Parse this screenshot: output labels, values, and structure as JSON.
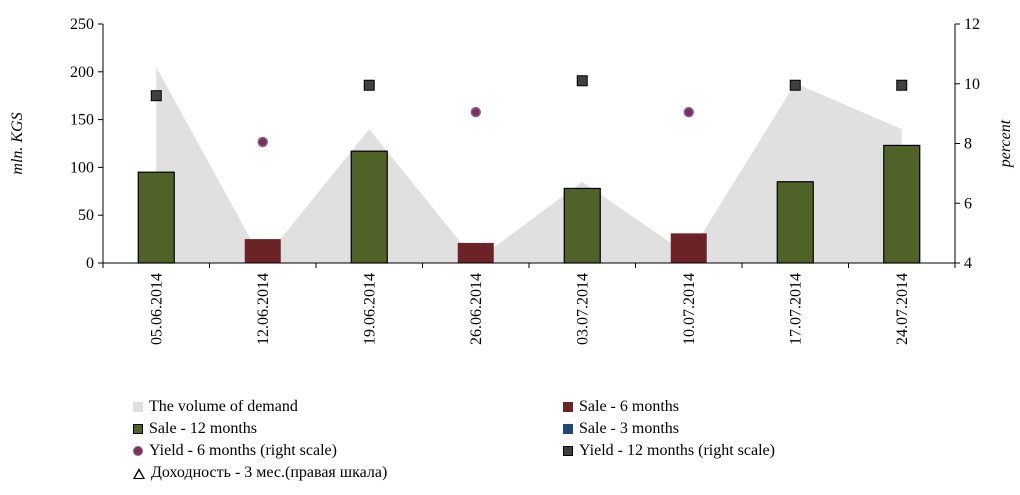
{
  "chart_data": {
    "type": "bar",
    "categories": [
      "05.06.2014",
      "12.06.2014",
      "19.06.2014",
      "26.06.2014",
      "03.07.2014",
      "10.07.2014",
      "17.07.2014",
      "24.07.2014"
    ],
    "ylabel": "mln. KGS",
    "ylabel_right": "percent",
    "ylim": [
      0,
      250
    ],
    "yticks": [
      "0",
      "50",
      "100",
      "150",
      "200",
      "250"
    ],
    "ylim_right": [
      4,
      12
    ],
    "yticks_right": [
      "4",
      "6",
      "8",
      "10",
      "12"
    ],
    "grid": false,
    "legend_position": "bottom",
    "series": [
      {
        "name": "The volume of demand",
        "type": "area",
        "axis": "left",
        "color": "#e0e0e0",
        "values": [
          205,
          2,
          140,
          2,
          85,
          8,
          188,
          140
        ]
      },
      {
        "name": "Sale - 6 months",
        "type": "bar",
        "axis": "left",
        "color": "#6b2326",
        "values": [
          null,
          25,
          null,
          21,
          null,
          31,
          null,
          null
        ]
      },
      {
        "name": "Sale - 12 months",
        "type": "bar",
        "axis": "left",
        "color": "#4f6228",
        "values": [
          95,
          null,
          117,
          null,
          78,
          null,
          85,
          123
        ]
      },
      {
        "name": "Sale - 3 months",
        "type": "bar",
        "axis": "left",
        "color": "#1f497d",
        "values": [
          null,
          null,
          null,
          null,
          null,
          null,
          null,
          null
        ]
      },
      {
        "name": "Yield - 6 months (right scale)",
        "type": "scatter",
        "axis": "right",
        "marker": "circle",
        "color": "#7f2f4f",
        "values": [
          null,
          8.05,
          null,
          9.05,
          null,
          9.05,
          null,
          null
        ]
      },
      {
        "name": "Yield - 12 months (right scale)",
        "type": "scatter",
        "axis": "right",
        "marker": "square",
        "color": "#404040",
        "values": [
          9.6,
          null,
          9.95,
          null,
          10.1,
          null,
          9.95,
          9.95
        ]
      },
      {
        "name": "Доходность - 3 мес.(правая шкала)",
        "type": "scatter",
        "axis": "right",
        "marker": "triangle",
        "color": "#000000",
        "values": [
          null,
          null,
          null,
          null,
          null,
          null,
          null,
          null
        ]
      }
    ]
  }
}
